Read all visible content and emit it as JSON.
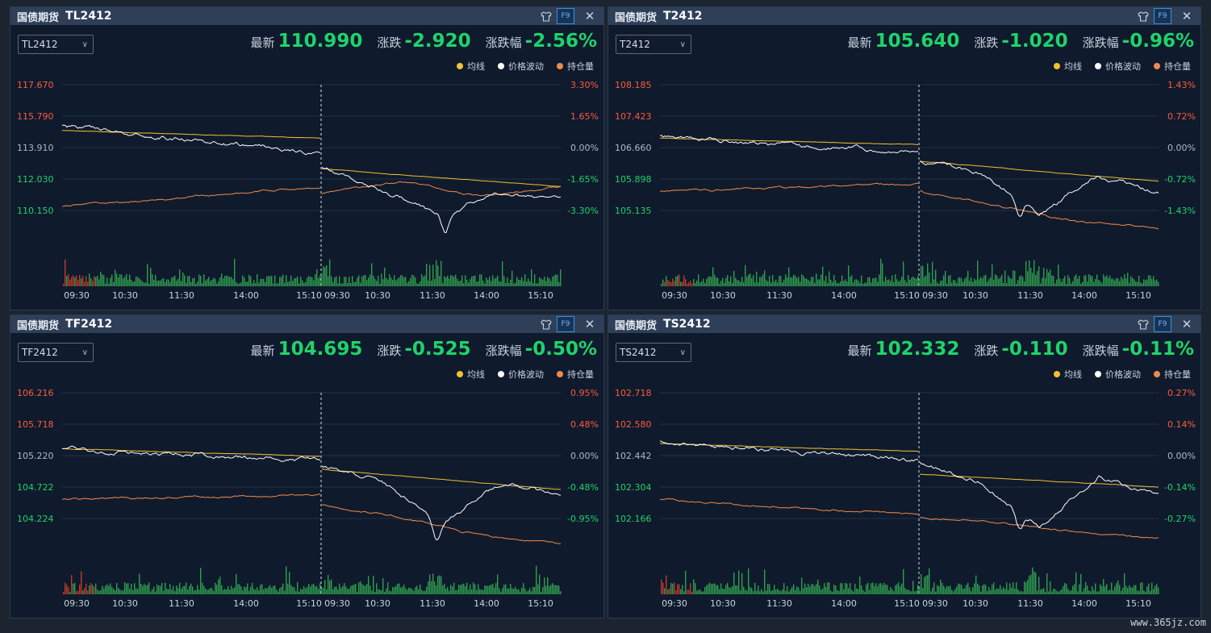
{
  "colors": {
    "up": "#ff5a3c",
    "down": "#1fd36a",
    "neutral": "#aeb9c8",
    "avg_line": "#f2c12e",
    "price_line": "#ffffff",
    "oi_line": "#f08a4b",
    "accent": "#3d8ed8"
  },
  "labels": {
    "latest": "最新",
    "change": "涨跌",
    "change_pct": "涨跌幅",
    "legend_avg": "均线",
    "legend_price": "价格波动",
    "legend_oi": "持仓量"
  },
  "watermark": "www.365jz.com",
  "panels": [
    {
      "market": "国债期货",
      "code": "TL2412",
      "select": "TL2412",
      "latest": "110.990",
      "change": "-2.920",
      "change_pct": "-2.56%",
      "yticks_left": [
        "117.670",
        "115.790",
        "113.910",
        "112.030",
        "110.150"
      ],
      "yticks_right": [
        "3.30%",
        "1.65%",
        "0.00%",
        "-1.65%",
        "-3.30%"
      ],
      "xticks": [
        "09:30",
        "10:30",
        "11:30",
        "14:00",
        "15:10",
        "09:30",
        "10:30",
        "11:30",
        "14:00",
        "15:10"
      ]
    },
    {
      "market": "国债期货",
      "code": "T2412",
      "select": "T2412",
      "latest": "105.640",
      "change": "-1.020",
      "change_pct": "-0.96%",
      "yticks_left": [
        "108.185",
        "107.423",
        "106.660",
        "105.898",
        "105.135"
      ],
      "yticks_right": [
        "1.43%",
        "0.72%",
        "0.00%",
        "-0.72%",
        "-1.43%"
      ],
      "xticks": [
        "09:30",
        "10:30",
        "11:30",
        "14:00",
        "15:10",
        "09:30",
        "10:30",
        "11:30",
        "14:00",
        "15:10"
      ]
    },
    {
      "market": "国债期货",
      "code": "TF2412",
      "select": "TF2412",
      "latest": "104.695",
      "change": "-0.525",
      "change_pct": "-0.50%",
      "yticks_left": [
        "106.216",
        "105.718",
        "105.220",
        "104.722",
        "104.224"
      ],
      "yticks_right": [
        "0.95%",
        "0.48%",
        "0.00%",
        "-0.48%",
        "-0.95%"
      ],
      "xticks": [
        "09:30",
        "10:30",
        "11:30",
        "14:00",
        "15:10",
        "09:30",
        "10:30",
        "11:30",
        "14:00",
        "15:10"
      ]
    },
    {
      "market": "国债期货",
      "code": "TS2412",
      "select": "TS2412",
      "latest": "102.332",
      "change": "-0.110",
      "change_pct": "-0.11%",
      "yticks_left": [
        "102.718",
        "102.580",
        "102.442",
        "102.304",
        "102.166"
      ],
      "yticks_right": [
        "0.27%",
        "0.14%",
        "0.00%",
        "-0.14%",
        "-0.27%"
      ],
      "xticks": [
        "09:30",
        "10:30",
        "11:30",
        "14:00",
        "15:10",
        "09:30",
        "10:30",
        "11:30",
        "14:00",
        "15:10"
      ]
    }
  ]
}
